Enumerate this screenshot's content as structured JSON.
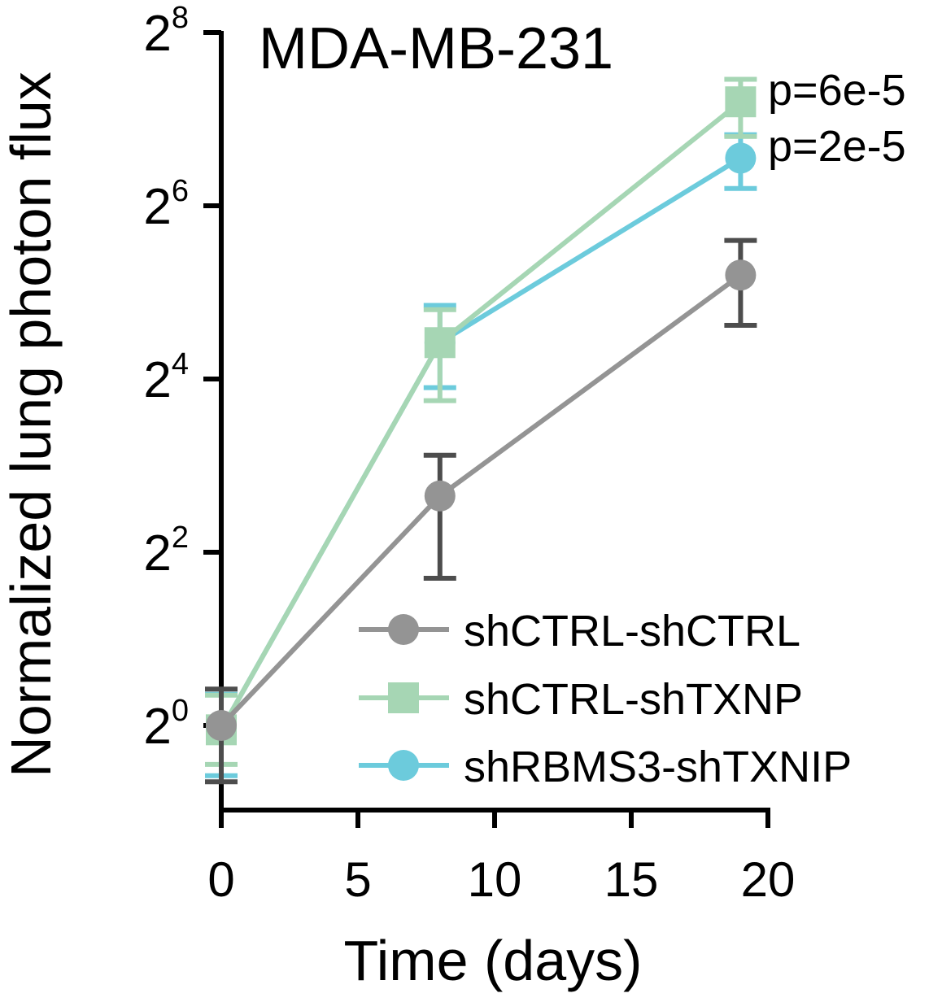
{
  "chart_data": {
    "type": "line",
    "title": "MDA-MB-231",
    "xlabel": "Time (days)",
    "ylabel": "Normalized lung photon flux",
    "yscale": "log2",
    "xlim": [
      0,
      20
    ],
    "ylim_exponent": [
      -1,
      8
    ],
    "x_ticks": [
      0,
      5,
      10,
      15,
      20
    ],
    "x_tick_labels": [
      "0",
      "5",
      "10",
      "15",
      "20"
    ],
    "y_ticks": [
      {
        "base": "2",
        "exp": "0",
        "exponent": 0
      },
      {
        "base": "2",
        "exp": "2",
        "exponent": 2
      },
      {
        "base": "2",
        "exp": "4",
        "exponent": 4
      },
      {
        "base": "2",
        "exp": "6",
        "exponent": 6
      },
      {
        "base": "2",
        "exp": "8",
        "exponent": 8
      }
    ],
    "x": [
      0,
      8,
      19
    ],
    "series": [
      {
        "name": "shCTRL-shCTRL",
        "marker": "circle",
        "color": "#949494",
        "errorbar_color": "#4d4d4d",
        "y_exponent": [
          0.0,
          2.65,
          5.2
        ],
        "err_low": [
          -0.65,
          1.7,
          4.62
        ],
        "err_high": [
          0.42,
          3.12,
          5.6
        ]
      },
      {
        "name": "shCTRL-shTXNP",
        "marker": "square",
        "color": "#a6d6b4",
        "errorbar_color": "#a6d6b4",
        "y_exponent": [
          -0.05,
          4.42,
          7.2
        ],
        "err_low": [
          -0.45,
          3.75,
          6.8
        ],
        "err_high": [
          0.35,
          4.8,
          7.46
        ]
      },
      {
        "name": "shRBMS3-shTXNIP",
        "marker": "circle",
        "color": "#6ccbdc",
        "errorbar_color": "#6ccbdc",
        "y_exponent": [
          -0.05,
          4.42,
          6.55
        ],
        "err_low": [
          -0.58,
          3.9,
          6.2
        ],
        "err_high": [
          0.36,
          4.85,
          6.82
        ]
      }
    ],
    "annotations": [
      "p=6e-5",
      "p=2e-5"
    ],
    "legend_position": "bottom-right"
  }
}
